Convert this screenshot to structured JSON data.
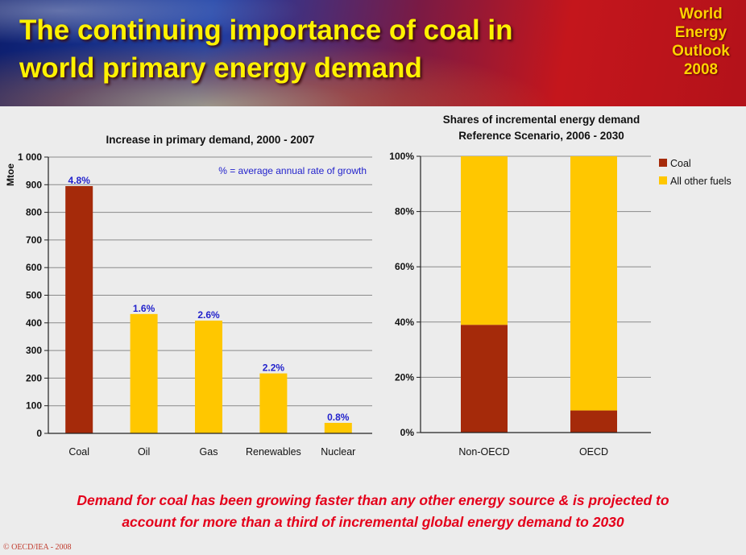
{
  "header": {
    "title_line1": "The continuing importance of coal in",
    "title_line2": "world primary energy demand",
    "badge_lines": [
      "World",
      "Energy",
      "Outlook",
      "2008"
    ]
  },
  "colors": {
    "coal": "#a52a0a",
    "other": "#ffc700",
    "growth_label": "#2222cc",
    "takeaway": "#e4001b"
  },
  "chart_data": [
    {
      "type": "bar",
      "title": "Increase in primary demand, 2000 - 2007",
      "ylabel": "Mtoe",
      "ylim": [
        0,
        1000
      ],
      "yticks": [
        0,
        100,
        200,
        300,
        400,
        500,
        600,
        700,
        800,
        900,
        1000
      ],
      "ytick_labels": [
        "0",
        "100",
        "200",
        "300",
        "400",
        "500",
        "600",
        "700",
        "800",
        "900",
        "1 000"
      ],
      "categories": [
        "Coal",
        "Oil",
        "Gas",
        "Renewables",
        "Nuclear"
      ],
      "values": [
        895,
        432,
        408,
        217,
        38
      ],
      "data_labels": [
        "4.8%",
        "1.6%",
        "2.6%",
        "2.2%",
        "0.8%"
      ],
      "bar_colors": [
        "#a52a0a",
        "#ffc700",
        "#ffc700",
        "#ffc700",
        "#ffc700"
      ],
      "annotation": "% = average annual rate of growth",
      "grid": true
    },
    {
      "type": "bar",
      "stacked": true,
      "title_lines": [
        "Shares of incremental energy demand",
        "Reference Scenario,  2006 - 2030"
      ],
      "ylim": [
        0,
        100
      ],
      "yticks": [
        0,
        20,
        40,
        60,
        80,
        100
      ],
      "ytick_labels": [
        "0%",
        "20%",
        "40%",
        "60%",
        "80%",
        "100%"
      ],
      "categories": [
        "Non-OECD",
        "OECD"
      ],
      "series": [
        {
          "name": "Coal",
          "values": [
            39,
            8
          ],
          "color": "#a52a0a"
        },
        {
          "name": "All other fuels",
          "values": [
            61,
            92
          ],
          "color": "#ffc700"
        }
      ],
      "legend": "right",
      "grid": true
    }
  ],
  "takeaway_line1": "Demand for coal has been growing faster than any other energy source & is projected to",
  "takeaway_line2": "account for more than a third of incremental global energy demand to 2030",
  "copyright": "© OECD/IEA - 2008"
}
